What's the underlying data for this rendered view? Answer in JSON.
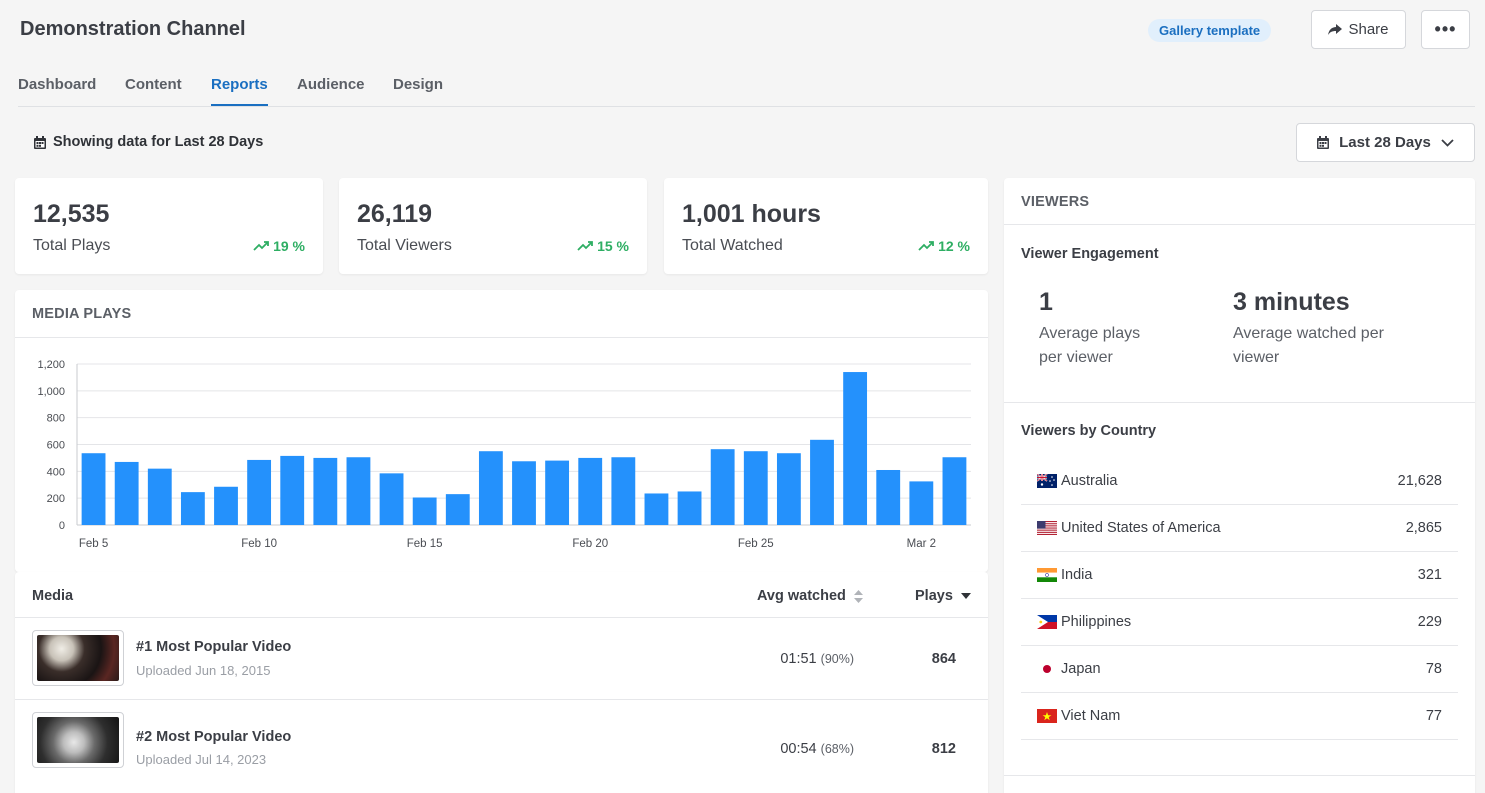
{
  "header": {
    "title": "Demonstration Channel",
    "badge": "Gallery template",
    "share_label": "Share",
    "more_label": "•••"
  },
  "tabs": [
    {
      "label": "Dashboard",
      "active": false
    },
    {
      "label": "Content",
      "active": false
    },
    {
      "label": "Reports",
      "active": true
    },
    {
      "label": "Audience",
      "active": false
    },
    {
      "label": "Design",
      "active": false
    }
  ],
  "filter": {
    "showing_text": "Showing data for Last 28 Days",
    "range_label": "Last 28 Days"
  },
  "stats": [
    {
      "value": "12,535",
      "label": "Total Plays",
      "change": "19 %"
    },
    {
      "value": "26,119",
      "label": "Total Viewers",
      "change": "15 %"
    },
    {
      "value": "1,001 hours",
      "label": "Total Watched",
      "change": "12 %"
    }
  ],
  "media_plays": {
    "heading": "MEDIA PLAYS"
  },
  "chart_data": {
    "type": "bar",
    "title": "MEDIA PLAYS",
    "xlabel": "",
    "ylabel": "",
    "ylim": [
      0,
      1200
    ],
    "yticks": [
      "0",
      "200",
      "400",
      "600",
      "800",
      "1,000",
      "1,200"
    ],
    "categories": [
      "Feb 5",
      "Feb 6",
      "Feb 7",
      "Feb 8",
      "Feb 9",
      "Feb 10",
      "Feb 11",
      "Feb 12",
      "Feb 13",
      "Feb 14",
      "Feb 15",
      "Feb 16",
      "Feb 17",
      "Feb 18",
      "Feb 19",
      "Feb 20",
      "Feb 21",
      "Feb 22",
      "Feb 23",
      "Feb 24",
      "Feb 25",
      "Feb 26",
      "Feb 27",
      "Feb 28",
      "Mar 1",
      "Mar 2",
      "Mar 3"
    ],
    "tick_labels": {
      "0": "Feb 5",
      "5": "Feb 10",
      "10": "Feb 15",
      "15": "Feb 20",
      "20": "Feb 25",
      "25": "Mar 2"
    },
    "values": [
      535,
      470,
      420,
      245,
      285,
      485,
      515,
      500,
      505,
      385,
      205,
      230,
      550,
      475,
      480,
      500,
      505,
      235,
      250,
      565,
      550,
      535,
      635,
      1140,
      410,
      325,
      505
    ],
    "color": "#2491fc",
    "grid": true
  },
  "media_table": {
    "col_media": "Media",
    "col_avg": "Avg watched",
    "col_plays": "Plays",
    "rows": [
      {
        "title": "#1 Most Popular Video",
        "uploaded": "Uploaded Jun 18, 2015",
        "avg": "01:51",
        "avg_pct": "(90%)",
        "plays": "864"
      },
      {
        "title": "#2 Most Popular Video",
        "uploaded": "Uploaded Jul 14, 2023",
        "avg": "00:54",
        "avg_pct": "(68%)",
        "plays": "812"
      }
    ]
  },
  "viewers": {
    "heading": "VIEWERS",
    "engagement_heading": "Viewer Engagement",
    "avg_plays_value": "1",
    "avg_plays_label": "Average plays per viewer",
    "avg_watched_value": "3 minutes",
    "avg_watched_label": "Average watched per viewer",
    "country_heading": "Viewers by Country",
    "countries": [
      {
        "name": "Australia",
        "value": "21,628"
      },
      {
        "name": "United States of America",
        "value": "2,865"
      },
      {
        "name": "India",
        "value": "321"
      },
      {
        "name": "Philippines",
        "value": "229"
      },
      {
        "name": "Japan",
        "value": "78"
      },
      {
        "name": "Viet Nam",
        "value": "77"
      }
    ]
  }
}
